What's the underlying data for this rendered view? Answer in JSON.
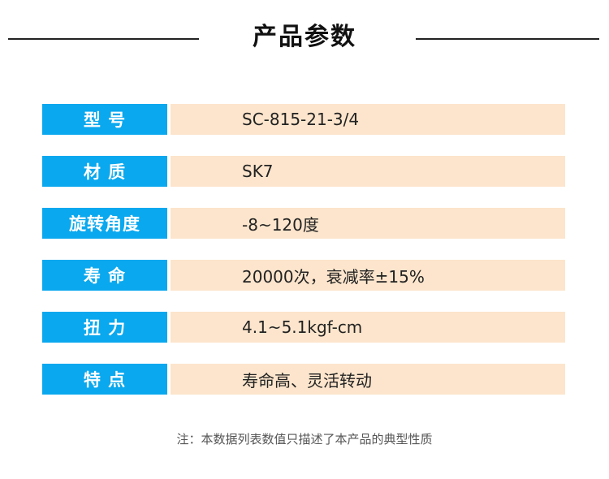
{
  "header": {
    "title": "产品参数"
  },
  "specs": [
    {
      "label": "型 号",
      "value": "SC-815-21-3/4"
    },
    {
      "label": "材 质",
      "value": "SK7"
    },
    {
      "label": "旋转角度",
      "value": "-8~120度"
    },
    {
      "label": "寿 命",
      "value": "20000次，衰减率±15%"
    },
    {
      "label": "扭 力",
      "value": "4.1~5.1kgf-cm"
    },
    {
      "label": "特 点",
      "value": "寿命高、灵活转动"
    }
  ],
  "footer": {
    "note": "注：本数据列表数值只描述了本产品的典型性质"
  },
  "colors": {
    "label_bg": "#0aa8ee",
    "value_bg": "#fce5cc"
  }
}
